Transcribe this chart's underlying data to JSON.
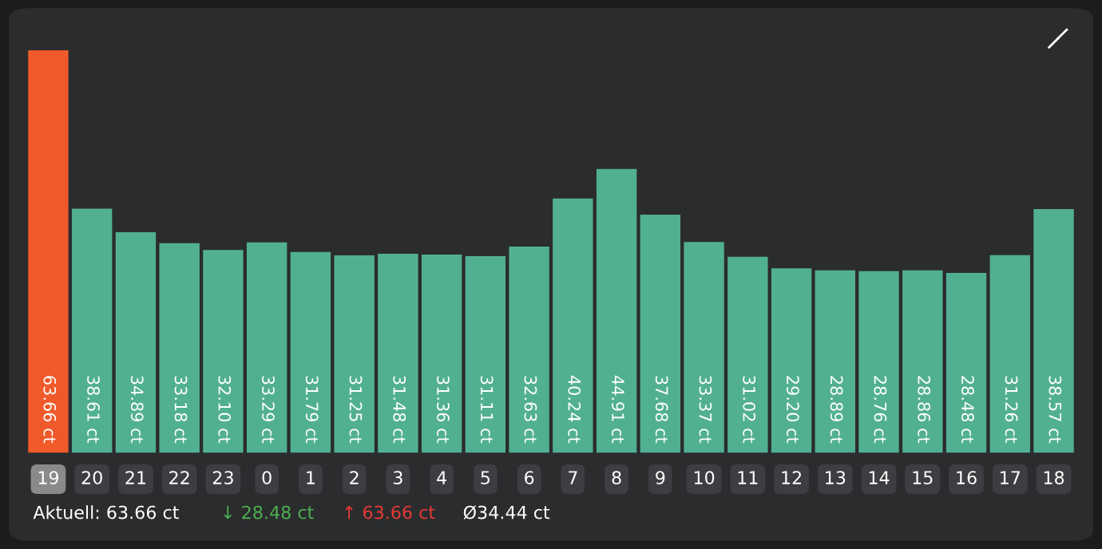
{
  "chart_data": {
    "type": "bar",
    "categories": [
      "19",
      "20",
      "21",
      "22",
      "23",
      "0",
      "1",
      "2",
      "3",
      "4",
      "5",
      "6",
      "7",
      "8",
      "9",
      "10",
      "11",
      "12",
      "13",
      "14",
      "15",
      "16",
      "17",
      "18"
    ],
    "values": [
      63.66,
      38.61,
      34.89,
      33.18,
      32.1,
      33.29,
      31.79,
      31.25,
      31.48,
      31.36,
      31.11,
      32.63,
      40.24,
      44.91,
      37.68,
      33.37,
      31.02,
      29.2,
      28.89,
      28.76,
      28.86,
      28.48,
      31.26,
      38.57
    ],
    "value_labels": [
      "63.66 ct",
      "38.61 ct",
      "34.89 ct",
      "33.18 ct",
      "32.10 ct",
      "33.29 ct",
      "31.79 ct",
      "31.25 ct",
      "31.48 ct",
      "31.36 ct",
      "31.11 ct",
      "32.63 ct",
      "40.24 ct",
      "44.91 ct",
      "37.68 ct",
      "33.37 ct",
      "31.02 ct",
      "29.20 ct",
      "28.89 ct",
      "28.76 ct",
      "28.86 ct",
      "28.48 ct",
      "31.26 ct",
      "38.57 ct"
    ],
    "colors": [
      "#f05a2a",
      "#52b092",
      "#52b092",
      "#52b092",
      "#52b092",
      "#52b092",
      "#52b092",
      "#52b092",
      "#52b092",
      "#52b092",
      "#52b092",
      "#52b092",
      "#52b092",
      "#52b092",
      "#52b092",
      "#52b092",
      "#52b092",
      "#52b092",
      "#52b092",
      "#52b092",
      "#52b092",
      "#52b092",
      "#52b092",
      "#52b092"
    ],
    "annotations": [
      "Aktuell: 63.66 ct",
      "↓ 28.48 ct",
      "↑ 63.66 ct",
      "Ø34.44 ct"
    ]
  }
}
